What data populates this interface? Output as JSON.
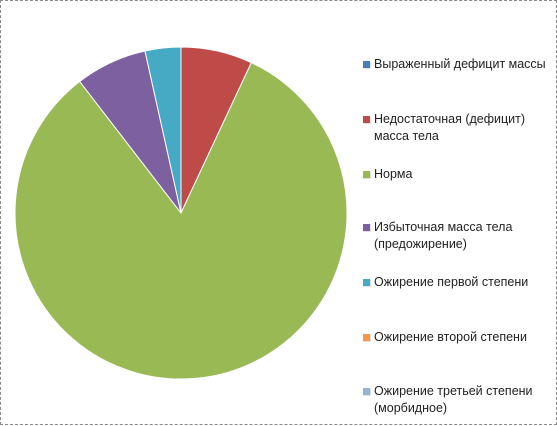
{
  "chart_data": {
    "type": "pie",
    "title": "",
    "legend_position": "right",
    "categories": [
      "Выраженный дефицит массы",
      "Недостаточная (дефицит) масса тела",
      "Норма",
      "Избыточная масса тела (предожирение)",
      "Ожирение первой степени",
      "Ожирение второй степени",
      "Ожирение третьей степени (морбидное)"
    ],
    "legend_lines": [
      [
        "Выраженный дефицит массы"
      ],
      [
        "Недостаточная (дефицит)",
        "масса тела"
      ],
      [
        "Норма"
      ],
      [
        "Избыточная масса тела",
        "(предожирение)"
      ],
      [
        "Ожирение первой степени"
      ],
      [
        "Ожирение второй степени"
      ],
      [
        "Ожирение третьей степени",
        "(морбидное)"
      ]
    ],
    "values": [
      0,
      7,
      83,
      7,
      3.5,
      0,
      0
    ],
    "colors": [
      "#4A7EBB",
      "#BE4B48",
      "#98B954",
      "#7D60A0",
      "#46AAC5",
      "#F79646",
      "#95B3D7"
    ]
  }
}
